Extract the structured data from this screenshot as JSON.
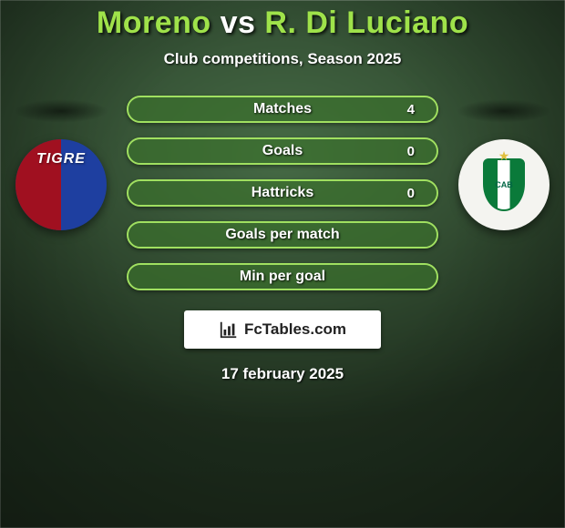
{
  "header": {
    "player1": "Moreno",
    "vs": "vs",
    "player2": "R. Di Luciano",
    "title_color_p1": "#9fe24a",
    "title_color_vs": "#ffffff",
    "title_color_p2": "#9fe24a",
    "title_fontsize": 34,
    "subtitle": "Club competitions, Season 2025",
    "subtitle_fontsize": 17
  },
  "stats": {
    "pill_border_color": "#a0e060",
    "pill_bg_color": "rgba(60,90,50,0.35)",
    "text_color": "#ffffff",
    "label_fontsize": 16,
    "left_fill_color": "#3a7a2a",
    "right_fill_color": "#3a7a2a",
    "rows": [
      {
        "label": "Matches",
        "left": "",
        "right": "4",
        "left_pct": 0,
        "right_pct": 100
      },
      {
        "label": "Goals",
        "left": "",
        "right": "0",
        "left_pct": 50,
        "right_pct": 50
      },
      {
        "label": "Hattricks",
        "left": "",
        "right": "0",
        "left_pct": 50,
        "right_pct": 50
      },
      {
        "label": "Goals per match",
        "left": "",
        "right": "",
        "left_pct": 50,
        "right_pct": 50
      },
      {
        "label": "Min per goal",
        "left": "",
        "right": "",
        "left_pct": 50,
        "right_pct": 50
      }
    ]
  },
  "clubs": {
    "left": {
      "name": "TIGRE",
      "bg_primary": "#1e3fa0",
      "bg_secondary": "#a01020"
    },
    "right": {
      "name": "CAB",
      "bg": "#f4f4f0",
      "accent": "#0a7a3a"
    }
  },
  "brand": {
    "text": "FcTables.com"
  },
  "date": {
    "text": "17 february 2025"
  },
  "canvas": {
    "background": "#345a34"
  }
}
